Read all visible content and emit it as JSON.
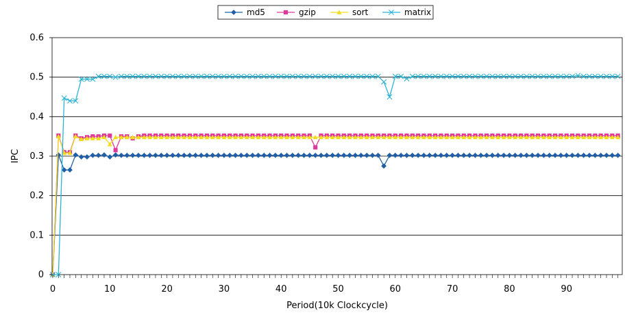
{
  "chart_data": {
    "type": "line",
    "title": "",
    "xlabel": "Period(10k Clockcycle)",
    "ylabel": "IPC",
    "xlim": [
      0,
      99
    ],
    "ylim": [
      0,
      0.6
    ],
    "xticks": [
      0,
      10,
      20,
      30,
      40,
      50,
      60,
      70,
      80,
      90
    ],
    "yticks": [
      0,
      0.1,
      0.2,
      0.3,
      0.4,
      0.5,
      0.6
    ],
    "ytick_labels": [
      "0",
      "0.1",
      "0.2",
      "0.3",
      "0.4",
      "0.5",
      "0.6"
    ],
    "grid": "horizontal",
    "legend_position": "top-center",
    "series": [
      {
        "name": "md5",
        "color": "#1f5fa8",
        "marker": "diamond",
        "special": [
          [
            0,
            0
          ],
          [
            1,
            0.303
          ],
          [
            2,
            0.265
          ],
          [
            3,
            0.265
          ],
          [
            4,
            0.303
          ],
          [
            5,
            0.298
          ],
          [
            6,
            0.298
          ],
          [
            7,
            0.302
          ],
          [
            8,
            0.302
          ],
          [
            9,
            0.303
          ],
          [
            10,
            0.298
          ],
          [
            11,
            0.303
          ],
          [
            58,
            0.275
          ]
        ],
        "default": 0.302
      },
      {
        "name": "gzip",
        "color": "#e0379a",
        "marker": "square",
        "special": [
          [
            0,
            0
          ],
          [
            1,
            0.352
          ],
          [
            2,
            0.31
          ],
          [
            3,
            0.31
          ],
          [
            4,
            0.352
          ],
          [
            5,
            0.345
          ],
          [
            6,
            0.348
          ],
          [
            7,
            0.35
          ],
          [
            8,
            0.35
          ],
          [
            9,
            0.352
          ],
          [
            10,
            0.352
          ],
          [
            11,
            0.315
          ],
          [
            12,
            0.35
          ],
          [
            13,
            0.35
          ],
          [
            14,
            0.345
          ],
          [
            15,
            0.35
          ],
          [
            46,
            0.322
          ]
        ],
        "default": 0.352
      },
      {
        "name": "sort",
        "color": "#f2dc22",
        "marker": "triangle",
        "special": [
          [
            0,
            0
          ],
          [
            1,
            0.35
          ],
          [
            2,
            0.308
          ],
          [
            3,
            0.308
          ],
          [
            4,
            0.35
          ],
          [
            5,
            0.343
          ],
          [
            6,
            0.345
          ],
          [
            7,
            0.345
          ],
          [
            8,
            0.345
          ],
          [
            9,
            0.348
          ],
          [
            10,
            0.33
          ],
          [
            11,
            0.348
          ],
          [
            12,
            0.348
          ],
          [
            13,
            0.348
          ]
        ],
        "default": 0.348
      },
      {
        "name": "matrix",
        "color": "#2ab3d4",
        "marker": "x",
        "special": [
          [
            0,
            0
          ],
          [
            1,
            0
          ],
          [
            2,
            0.447
          ],
          [
            3,
            0.44
          ],
          [
            4,
            0.44
          ],
          [
            5,
            0.495
          ],
          [
            6,
            0.495
          ],
          [
            7,
            0.495
          ],
          [
            8,
            0.502
          ],
          [
            9,
            0.502
          ],
          [
            10,
            0.502
          ],
          [
            11,
            0.5
          ],
          [
            58,
            0.488
          ],
          [
            59,
            0.45
          ],
          [
            60,
            0.502
          ],
          [
            61,
            0.502
          ],
          [
            62,
            0.496
          ],
          [
            92,
            0.504
          ]
        ],
        "default": 0.502
      }
    ]
  }
}
